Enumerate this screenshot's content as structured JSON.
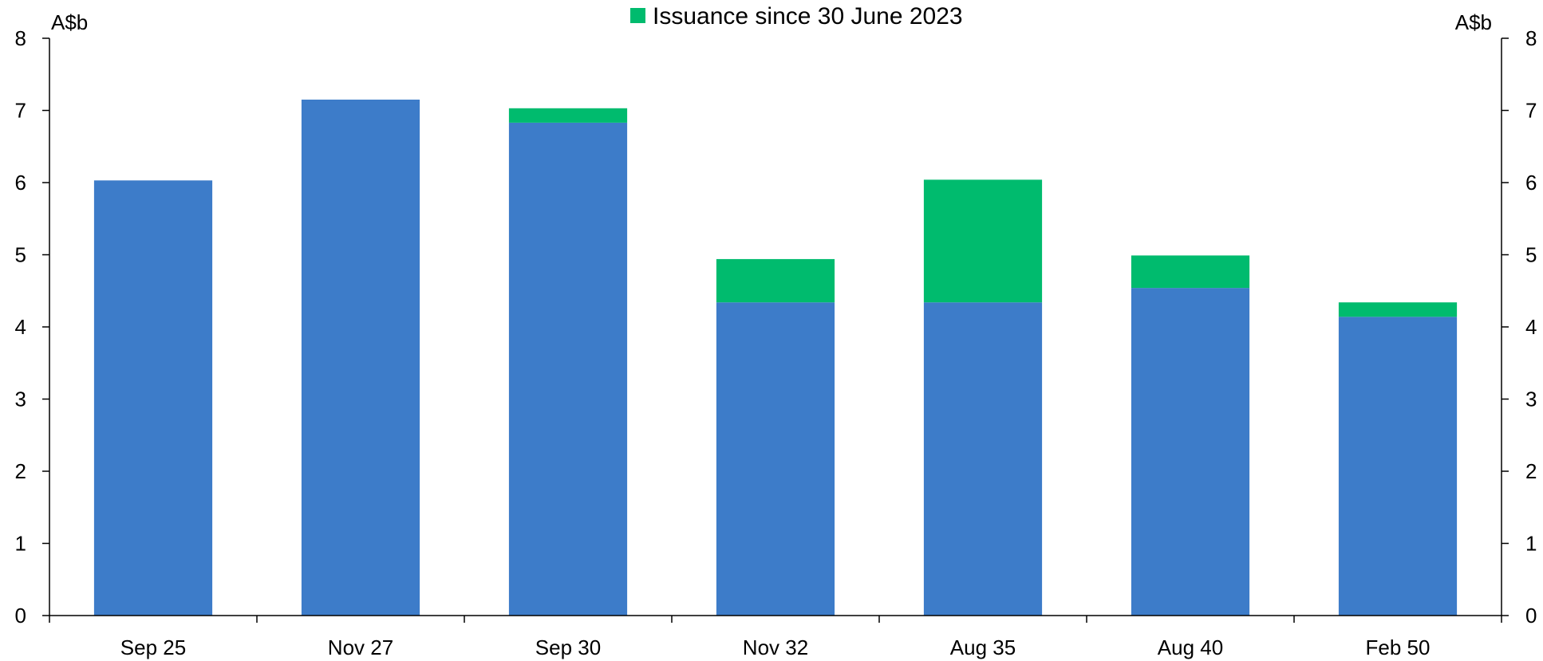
{
  "chart_data": {
    "type": "bar",
    "stacked": true,
    "categories": [
      "Sep 25",
      "Nov 27",
      "Sep 30",
      "Nov 32",
      "Aug 35",
      "Aug 40",
      "Feb 50"
    ],
    "series": [
      {
        "name": "",
        "color": "#3d7cc9",
        "values": [
          6.03,
          7.15,
          6.83,
          4.34,
          4.34,
          4.54,
          4.14
        ]
      },
      {
        "name": "Issuance since 30 June 2023",
        "color": "#00bb6e",
        "values": [
          0.0,
          0.0,
          0.2,
          0.6,
          1.7,
          0.45,
          0.2
        ]
      }
    ],
    "title": "",
    "ylabel_left": "A$b",
    "ylabel_right": "A$b",
    "ylim": [
      0,
      8
    ],
    "yticks": [
      "0",
      "1",
      "2",
      "3",
      "4",
      "5",
      "6",
      "7",
      "8"
    ],
    "grid": false,
    "legend_position": "top-center"
  }
}
